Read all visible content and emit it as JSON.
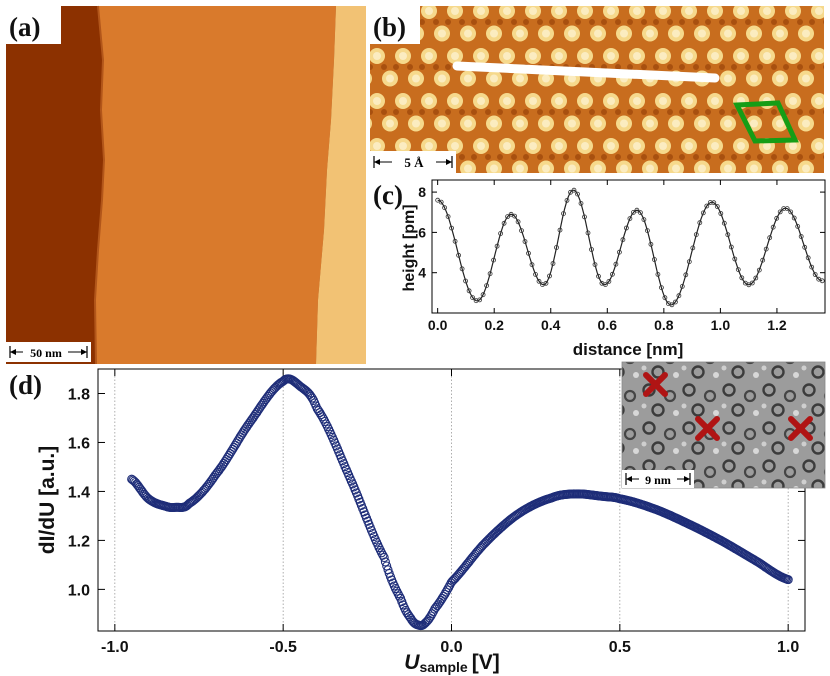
{
  "panels": {
    "a": {
      "label": "(a)",
      "scalebar": "50 nm"
    },
    "b": {
      "label": "(b)",
      "scalebar": "5 Å"
    },
    "c": {
      "label": "(c)"
    },
    "d": {
      "label": "(d)",
      "inset_scalebar": "9 nm"
    }
  },
  "colors": {
    "terrace_dark": "#8c3100",
    "terrace_mid": "#d97a2c",
    "terrace_light": "#f2c274",
    "profile_line": "#ffffff",
    "unit_cell": "#169d16",
    "sts_points": "#1e2d78",
    "inset_marker": "#b01414"
  },
  "chart_data": [
    {
      "type": "line",
      "panel": "c",
      "xlabel": "distance [nm]",
      "ylabel": "height [pm]",
      "xlim": [
        -0.02,
        1.37
      ],
      "ylim": [
        2.0,
        8.6
      ],
      "xticks": [
        "0.0",
        "0.2",
        "0.4",
        "0.6",
        "0.8",
        "1.0",
        "1.2"
      ],
      "yticks": [
        "4",
        "6",
        "8"
      ],
      "grid": false,
      "series": [
        {
          "x": [
            0.0,
            0.14,
            0.26,
            0.375,
            0.48,
            0.59,
            0.705,
            0.825,
            0.97,
            1.1,
            1.23,
            1.36
          ],
          "values": [
            7.6,
            2.6,
            6.9,
            3.4,
            8.1,
            3.4,
            7.1,
            2.4,
            7.5,
            3.4,
            7.2,
            3.6
          ]
        }
      ]
    },
    {
      "type": "scatter",
      "panel": "d",
      "xlabel": "U",
      "xlabel_sub": "sample",
      "xlabel_unit": "[V]",
      "ylabel": "dI/dU [a.u.]",
      "xlim": [
        -1.05,
        1.05
      ],
      "ylim": [
        0.83,
        1.9
      ],
      "xticks": [
        "-1.0",
        "-0.5",
        "0.0",
        "0.5",
        "1.0"
      ],
      "yticks": [
        "1.0",
        "1.2",
        "1.4",
        "1.6",
        "1.8"
      ],
      "grid": "vertical-dotted",
      "series": [
        {
          "x": [
            -0.95,
            -0.9,
            -0.85,
            -0.82,
            -0.78,
            -0.7,
            -0.6,
            -0.5,
            -0.45,
            -0.4,
            -0.3,
            -0.2,
            -0.15,
            -0.12,
            -0.1,
            -0.08,
            -0.05,
            0.0,
            0.1,
            0.2,
            0.3,
            0.37,
            0.45,
            0.5,
            0.6,
            0.7,
            0.8,
            0.9,
            1.0
          ],
          "values": [
            1.45,
            1.37,
            1.34,
            1.335,
            1.35,
            1.47,
            1.68,
            1.85,
            1.83,
            1.74,
            1.45,
            1.13,
            0.96,
            0.88,
            0.855,
            0.86,
            0.92,
            1.03,
            1.19,
            1.31,
            1.375,
            1.39,
            1.38,
            1.37,
            1.33,
            1.27,
            1.2,
            1.12,
            1.04
          ]
        }
      ]
    }
  ]
}
